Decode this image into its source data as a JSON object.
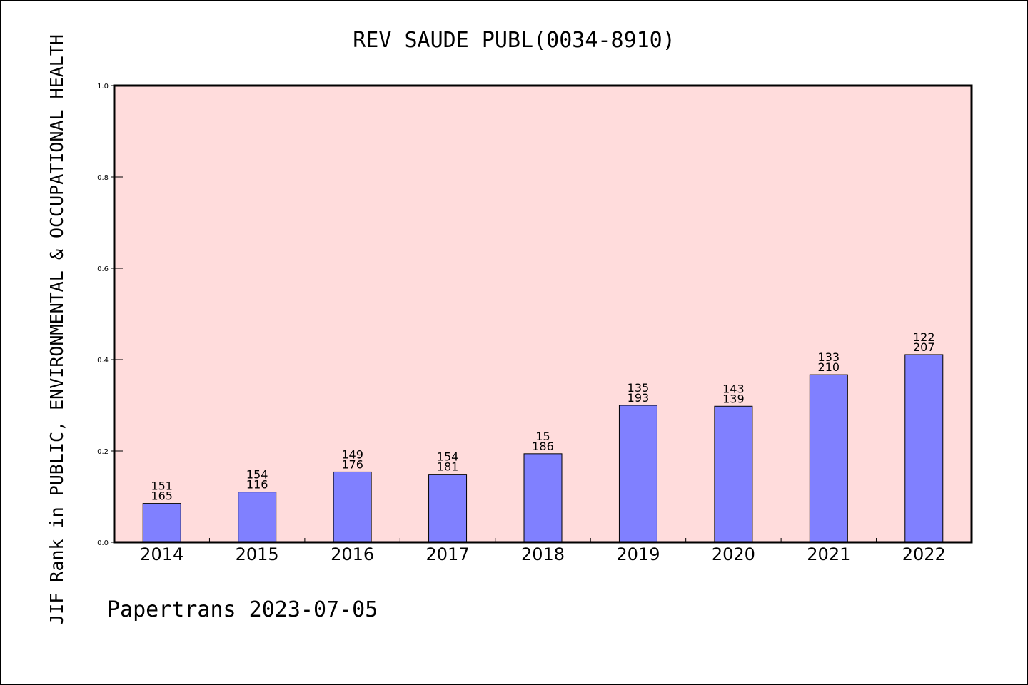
{
  "chart_data": {
    "type": "bar",
    "title": "REV SAUDE PUBL(0034-8910)",
    "ylabel": "JIF Rank in PUBLIC, ENVIRONMENTAL & OCCUPATIONAL HEALTH",
    "xlabel": "",
    "ylim": [
      0,
      1.0
    ],
    "yticks": [
      "0.0",
      "0.2",
      "0.4",
      "0.6",
      "0.8",
      "1.0"
    ],
    "categories": [
      "2014",
      "2015",
      "2016",
      "2017",
      "2018",
      "2019",
      "2020",
      "2021",
      "2022"
    ],
    "values": [
      0.085,
      0.11,
      0.154,
      0.149,
      0.194,
      0.3,
      0.298,
      0.367,
      0.411
    ],
    "label_top": [
      "151",
      "154",
      "149",
      "154",
      "15",
      "135",
      "143",
      "133",
      "122"
    ],
    "label_bottom": [
      "165",
      "116",
      "176",
      "181",
      "186",
      "193",
      "139",
      "210",
      "207"
    ],
    "bar_color": "#8080ff",
    "plot_background": "#ffdcdc",
    "grid": false,
    "legend": "none"
  },
  "footer": "Papertrans 2023-07-05"
}
